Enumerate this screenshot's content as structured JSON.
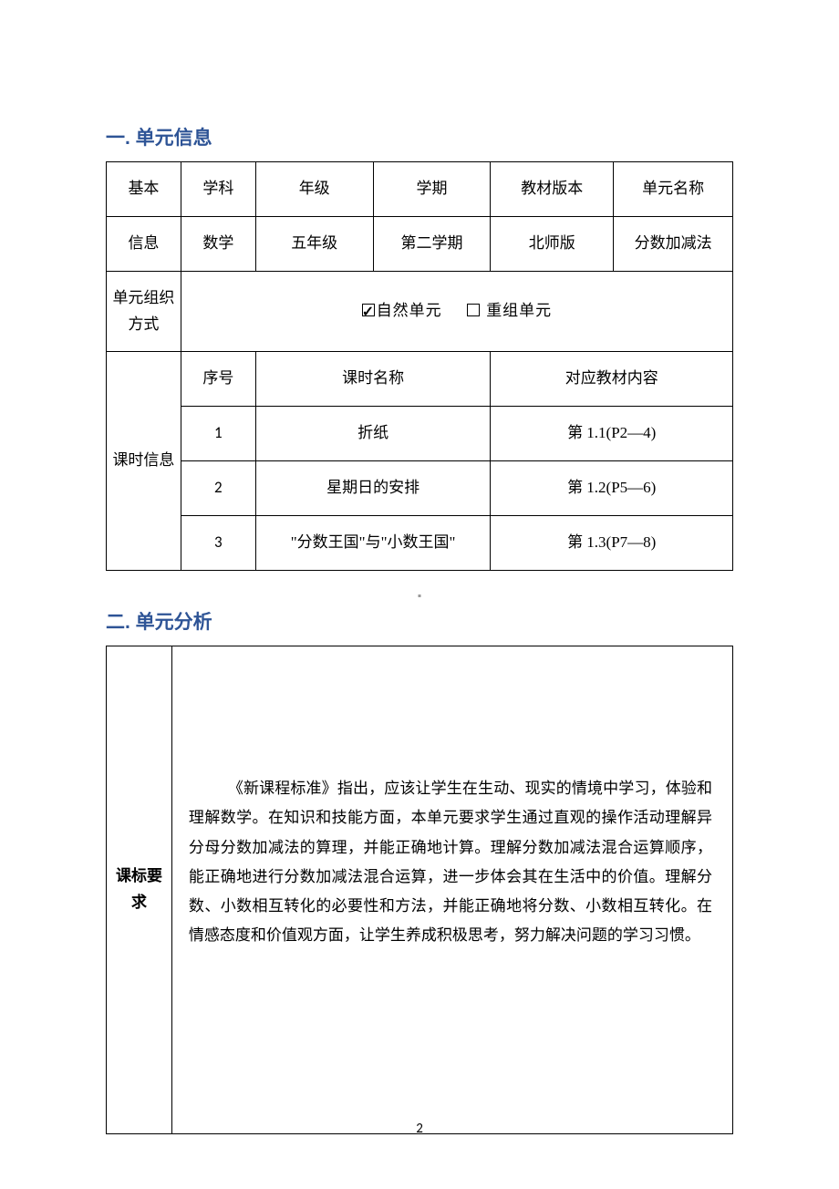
{
  "sections": {
    "h1": "一. 单元信息",
    "h2": "二. 单元分析"
  },
  "table1": {
    "r1": {
      "c1": "基本",
      "c2": "学科",
      "c3": "年级",
      "c4": "学期",
      "c5": "教材版本",
      "c6": "单元名称"
    },
    "r2": {
      "c1": "信息",
      "c2": "数学",
      "c3": "五年级",
      "c4": "第二学期",
      "c5": "北师版",
      "c6": "分数加减法"
    },
    "r3": {
      "c1": "单元组织方式",
      "opt1": "自然单元",
      "opt2": " 重组单元"
    },
    "r4": {
      "c1": "课时信息",
      "c2": "序号",
      "c3": "课时名称",
      "c4": "对应教材内容"
    },
    "rows": [
      {
        "num": "1",
        "name": "折纸",
        "ref": "第 1.1(P2—4)"
      },
      {
        "num": "2",
        "name": "星期日的安排",
        "ref": "第 1.2(P5—6)"
      },
      {
        "num": "3",
        "name": "\"分数王国\"与\"小数王国\"",
        "ref": "第 1.3(P7—8)"
      }
    ]
  },
  "table2": {
    "left": "课标要求",
    "body": "《新课程标准》指出，应该让学生在生动、现实的情境中学习，体验和理解数学。在知识和技能方面，本单元要求学生通过直观的操作活动理解异分母分数加减法的算理，并能正确地计算。理解分数加减法混合运算顺序，能正确地进行分数加减法混合运算，进一步体会其在生活中的价值。理解分数、小数相互转化的必要性和方法，并能正确地将分数、小数相互转化。在情感态度和价值观方面，让学生养成积极思考，努力解决问题的学习习惯。"
  },
  "pageNumber": "2",
  "style": {
    "heading_color": "#2e5496",
    "border_color": "#000000",
    "font_body": "SimSun",
    "font_heading": "SimHei",
    "font_num": "Calibri",
    "base_fontsize": 17,
    "heading_fontsize": 21,
    "page_bg": "#ffffff"
  }
}
